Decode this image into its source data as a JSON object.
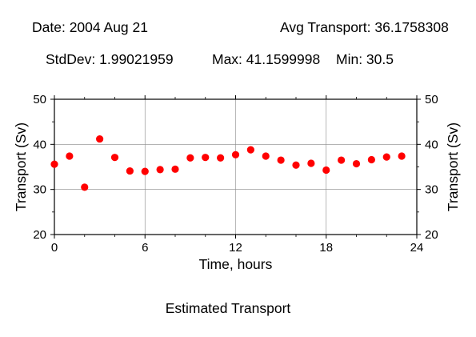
{
  "header": {
    "date": "Date: 2004 Aug 21",
    "avg": "Avg Transport: 36.1758308",
    "stddev": "StdDev: 1.99021959",
    "max": "Max: 41.1599998",
    "min": "Min: 30.5"
  },
  "footer": {
    "caption": "Estimated Transport"
  },
  "colors": {
    "marker": "#ff0000",
    "grid": "#888888",
    "axis": "#000000"
  },
  "chart_data": {
    "type": "scatter",
    "xlabel": "Time, hours",
    "ylabel": "Transport (Sv)",
    "ylabel_right": "Transport (Sv)",
    "xlim": [
      0,
      24
    ],
    "ylim": [
      20,
      50
    ],
    "xticks": [
      "0",
      "6",
      "12",
      "18",
      "24"
    ],
    "yticks": [
      "20",
      "30",
      "40",
      "50"
    ],
    "grid": true,
    "x": [
      0,
      1,
      2,
      3,
      4,
      5,
      6,
      7,
      8,
      9,
      10,
      11,
      12,
      13,
      14,
      15,
      16,
      17,
      18,
      19,
      20,
      21,
      22,
      23
    ],
    "y": [
      35.6,
      37.4,
      30.5,
      41.2,
      37.1,
      34.1,
      34.0,
      34.4,
      34.5,
      37.0,
      37.1,
      37.0,
      37.7,
      38.8,
      37.4,
      36.5,
      35.4,
      35.8,
      34.3,
      36.5,
      35.7,
      36.6,
      37.2,
      37.4
    ]
  }
}
